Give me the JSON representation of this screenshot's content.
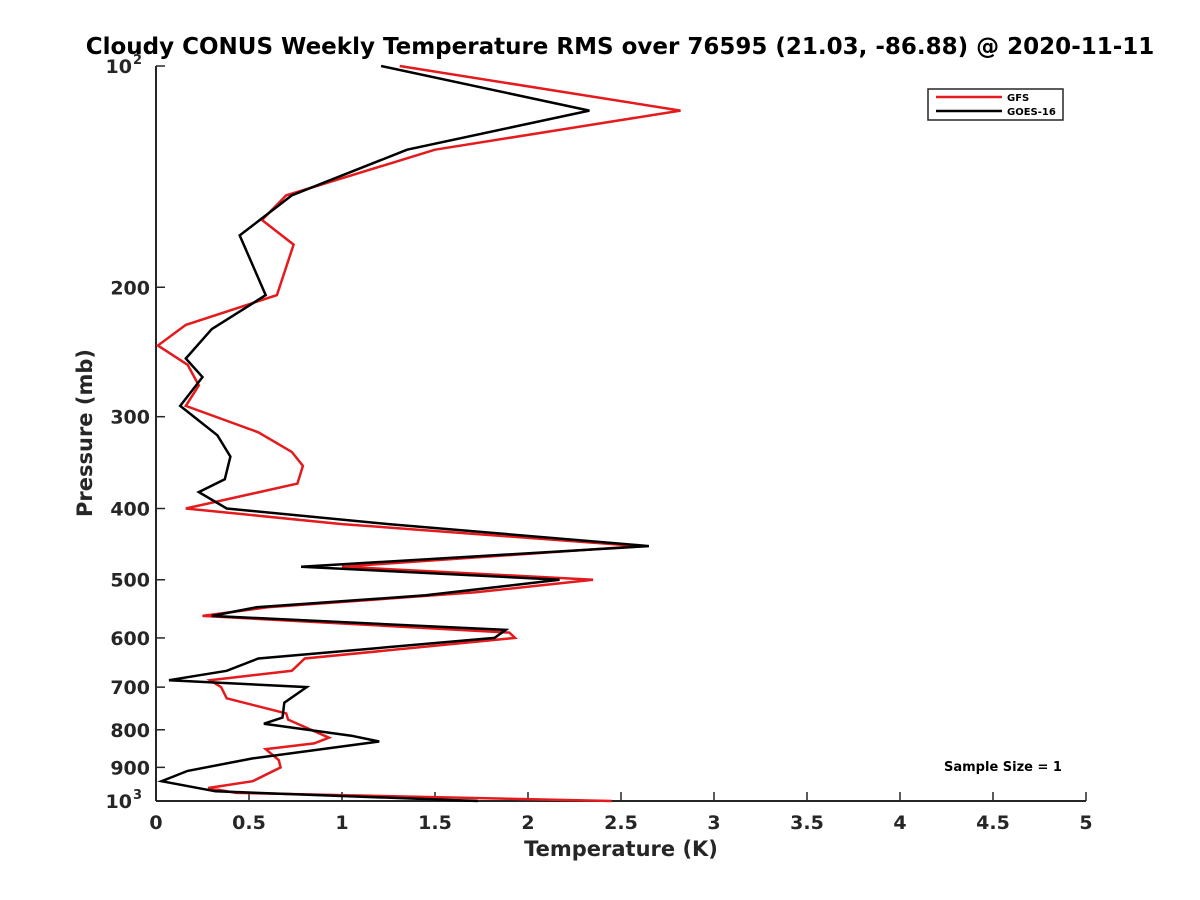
{
  "chart_data": {
    "type": "line",
    "title": "Cloudy CONUS Weekly Temperature RMS over 76595 (21.03, -86.88) @ 2020-11-11",
    "xlabel": "Temperature (K)",
    "ylabel": "Pressure (mb)",
    "xlim": [
      0,
      5
    ],
    "ylim": [
      100,
      1000
    ],
    "yscale": "log",
    "y_reversed": true,
    "x_ticks": [
      "0",
      "0.5",
      "1",
      "1.5",
      "2",
      "2.5",
      "3",
      "3.5",
      "4",
      "4.5",
      "5"
    ],
    "y_ticks": [
      {
        "value": 100,
        "label": "10",
        "exp": "2"
      },
      {
        "value": 200,
        "label": "200"
      },
      {
        "value": 300,
        "label": "300"
      },
      {
        "value": 400,
        "label": "400"
      },
      {
        "value": 500,
        "label": "500"
      },
      {
        "value": 600,
        "label": "600"
      },
      {
        "value": 700,
        "label": "700"
      },
      {
        "value": 800,
        "label": "800"
      },
      {
        "value": 900,
        "label": "900"
      },
      {
        "value": 1000,
        "label": "10",
        "exp": "3"
      }
    ],
    "grid": false,
    "legend_position": "top-right",
    "annotation": "Sample Size = 1",
    "series": [
      {
        "name": "GFS",
        "color": "#e41a1c",
        "points": [
          [
            1.31,
            100
          ],
          [
            2.82,
            115
          ],
          [
            1.5,
            130
          ],
          [
            0.7,
            150
          ],
          [
            0.57,
            162
          ],
          [
            0.74,
            175
          ],
          [
            0.65,
            205
          ],
          [
            0.16,
            225
          ],
          [
            0.01,
            240
          ],
          [
            0.17,
            255
          ],
          [
            0.23,
            272
          ],
          [
            0.16,
            290
          ],
          [
            0.55,
            315
          ],
          [
            0.73,
            335
          ],
          [
            0.79,
            350
          ],
          [
            0.76,
            370
          ],
          [
            0.16,
            400
          ],
          [
            1.0,
            420
          ],
          [
            2.6,
            450
          ],
          [
            1.0,
            480
          ],
          [
            2.35,
            500
          ],
          [
            1.72,
            520
          ],
          [
            0.6,
            545
          ],
          [
            0.25,
            560
          ],
          [
            1.9,
            590
          ],
          [
            1.93,
            600
          ],
          [
            0.8,
            640
          ],
          [
            0.73,
            665
          ],
          [
            0.29,
            685
          ],
          [
            0.35,
            700
          ],
          [
            0.38,
            725
          ],
          [
            0.7,
            760
          ],
          [
            0.71,
            775
          ],
          [
            0.93,
            820
          ],
          [
            0.85,
            835
          ],
          [
            0.59,
            850
          ],
          [
            0.66,
            880
          ],
          [
            0.67,
            900
          ],
          [
            0.52,
            940
          ],
          [
            0.28,
            960
          ],
          [
            0.43,
            975
          ],
          [
            2.45,
            1000
          ]
        ]
      },
      {
        "name": "GOES-16",
        "color": "#000000",
        "points": [
          [
            1.21,
            100
          ],
          [
            2.33,
            115
          ],
          [
            1.35,
            130
          ],
          [
            0.73,
            150
          ],
          [
            0.45,
            170
          ],
          [
            0.59,
            205
          ],
          [
            0.3,
            228
          ],
          [
            0.16,
            250
          ],
          [
            0.25,
            265
          ],
          [
            0.13,
            290
          ],
          [
            0.33,
            318
          ],
          [
            0.4,
            340
          ],
          [
            0.37,
            365
          ],
          [
            0.23,
            380
          ],
          [
            0.38,
            400
          ],
          [
            1.25,
            420
          ],
          [
            2.65,
            450
          ],
          [
            0.78,
            480
          ],
          [
            2.17,
            500
          ],
          [
            1.45,
            525
          ],
          [
            0.54,
            545
          ],
          [
            0.3,
            560
          ],
          [
            1.88,
            585
          ],
          [
            1.82,
            600
          ],
          [
            0.55,
            640
          ],
          [
            0.38,
            665
          ],
          [
            0.07,
            685
          ],
          [
            0.81,
            700
          ],
          [
            0.69,
            735
          ],
          [
            0.68,
            770
          ],
          [
            0.58,
            785
          ],
          [
            1.05,
            815
          ],
          [
            1.2,
            830
          ],
          [
            0.52,
            875
          ],
          [
            0.17,
            910
          ],
          [
            0.03,
            940
          ],
          [
            0.32,
            970
          ],
          [
            1.73,
            1000
          ]
        ]
      }
    ]
  }
}
